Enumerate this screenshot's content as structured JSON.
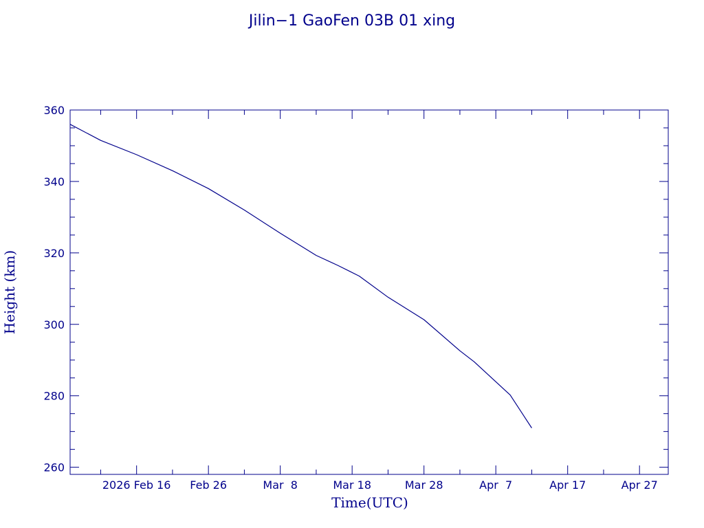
{
  "colors": {
    "ink": "#00008b",
    "background": "#ffffff"
  },
  "chart_data": {
    "type": "line",
    "title": "Jilin−1 GaoFen 03B 01 xing",
    "xlabel": "Time(UTC)",
    "ylabel": "Height (km)",
    "xlim": [
      "2026-02-06T18:00",
      "2026-05-01T00:00"
    ],
    "ylim": [
      258,
      360
    ],
    "grid": false,
    "x_ticks": [
      {
        "date": "2026-02-16",
        "label": "2026 Feb 16"
      },
      {
        "date": "2026-02-26",
        "label": "Feb 26"
      },
      {
        "date": "2026-03-08",
        "label": "Mar  8"
      },
      {
        "date": "2026-03-18",
        "label": "Mar 18"
      },
      {
        "date": "2026-03-28",
        "label": "Mar 28"
      },
      {
        "date": "2026-04-07",
        "label": "Apr  7"
      },
      {
        "date": "2026-04-17",
        "label": "Apr 17"
      },
      {
        "date": "2026-04-27",
        "label": "Apr 27"
      }
    ],
    "y_ticks": [
      260,
      280,
      300,
      320,
      340,
      360
    ],
    "series": [
      {
        "x": [
          "2026-02-06T18:00",
          "2026-02-11",
          "2026-02-16",
          "2026-02-21",
          "2026-02-26",
          "2026-03-03",
          "2026-03-08",
          "2026-03-13",
          "2026-03-16",
          "2026-03-19",
          "2026-03-23",
          "2026-03-28",
          "2026-04-02",
          "2026-04-04",
          "2026-04-09",
          "2026-04-12"
        ],
        "y": [
          356,
          351.5,
          347.5,
          343,
          338,
          332,
          325.5,
          319.3,
          316.5,
          313.5,
          307.6,
          301.3,
          292.6,
          289.5,
          280.2,
          271
        ]
      }
    ]
  }
}
